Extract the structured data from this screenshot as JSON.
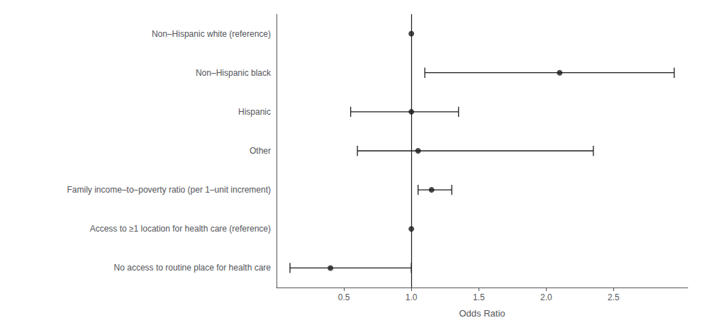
{
  "chart_data": {
    "type": "scatter",
    "orientation": "horizontal",
    "xlabel": "Odds Ratio",
    "categories": [
      "Non–Hispanic white (reference)",
      "Non–Hispanic black",
      "Hispanic",
      "Other",
      "Family income–to–poverty ratio (per 1–unit increment)",
      "Access to ≥1 location for health care (reference)",
      "No access to routine place for health care"
    ],
    "values": [
      1.0,
      2.1,
      1.0,
      1.05,
      1.15,
      1.0,
      0.4
    ],
    "ci_low": [
      null,
      1.1,
      0.55,
      0.6,
      1.05,
      null,
      0.1
    ],
    "ci_high": [
      null,
      2.95,
      1.35,
      2.35,
      1.3,
      null,
      1.0
    ],
    "ref_line": 1.0,
    "color": "#1a1a1a",
    "xlim": [
      0.0,
      3.05
    ],
    "xticks": [
      0.5,
      {
        "value": 1.0,
        "label": "1.0"
      },
      1.5,
      {
        "value": 2.0,
        "label": "2.0"
      },
      2.5
    ],
    "grid": false
  }
}
